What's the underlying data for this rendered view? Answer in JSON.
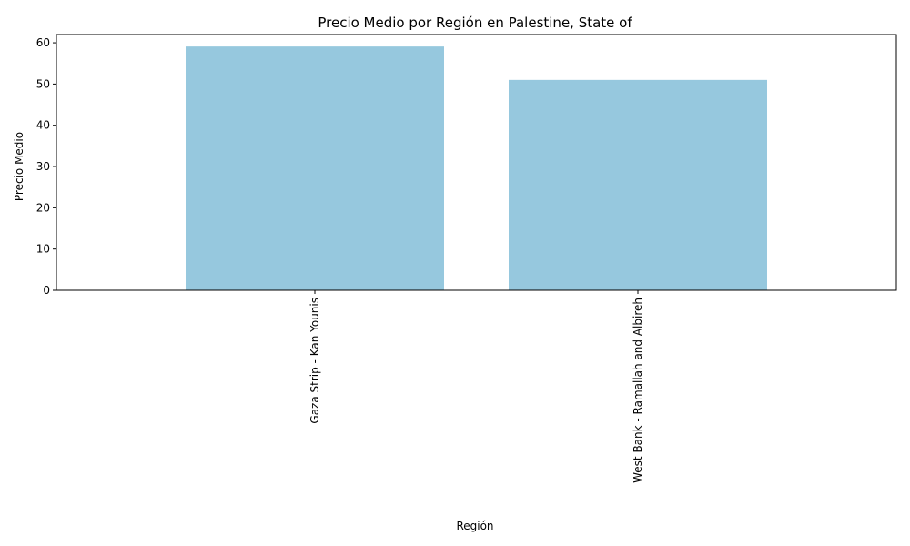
{
  "chart_data": {
    "type": "bar",
    "title": "Precio Medio por Región en Palestine, State of",
    "xlabel": "Región",
    "ylabel": "Precio Medio",
    "categories": [
      "Gaza Strip - Kan Younis",
      "West Bank - Ramallah and Albireh"
    ],
    "values": [
      59.1,
      51.0
    ],
    "ylim": [
      0,
      62
    ],
    "yticks": [
      0,
      10,
      20,
      30,
      40,
      50,
      60
    ],
    "x_tick_rotation": 90,
    "grid": false,
    "legend": "none",
    "bar_color": "#96c8de"
  }
}
